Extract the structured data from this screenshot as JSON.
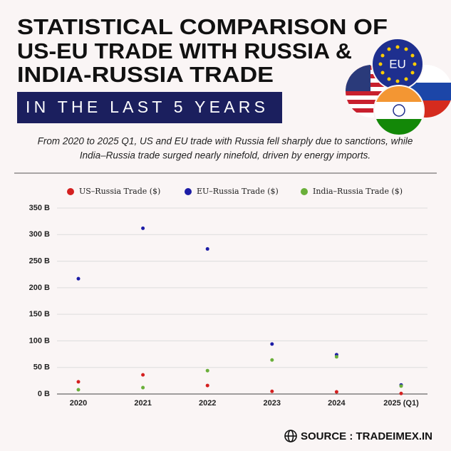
{
  "header": {
    "title": [
      "STATISTICAL COMPARISON OF",
      "US-EU TRADE WITH RUSSIA &",
      "INDIA-RUSSIA TRADE"
    ],
    "banner": "IN THE LAST 5 YEARS",
    "flag_label": "EU",
    "description": [
      "From 2020 to 2025 Q1, US and EU trade with Russia fell sharply due to sanctions, while",
      "India–Russia trade surged nearly ninefold, driven by energy imports."
    ]
  },
  "chart_data": {
    "type": "line",
    "categories": [
      "2020",
      "2021",
      "2022",
      "2023",
      "2024",
      "2025 (Q1)"
    ],
    "series": [
      {
        "name": "US–Russia Trade ($)",
        "color": "#d42020",
        "values": [
          23,
          36,
          16,
          5,
          4,
          1
        ]
      },
      {
        "name": "EU–Russia Trade ($)",
        "color": "#1c1ca6",
        "values": [
          217,
          312,
          273,
          94,
          74,
          17
        ]
      },
      {
        "name": "India–Russia Trade ($)",
        "color": "#6aaf3a",
        "values": [
          8,
          12,
          44,
          64,
          70,
          15
        ]
      }
    ],
    "ylim": [
      0,
      350
    ],
    "yticks": [
      {
        "value": 0,
        "label": "0 B"
      },
      {
        "value": 50,
        "label": "50 B"
      },
      {
        "value": 100,
        "label": "100 B"
      },
      {
        "value": 150,
        "label": "150 B"
      },
      {
        "value": 200,
        "label": "200 B"
      },
      {
        "value": 250,
        "label": "250 B"
      },
      {
        "value": 300,
        "label": "300 B"
      },
      {
        "value": 350,
        "label": "350 B"
      }
    ],
    "grid": true,
    "legend": "top"
  },
  "footer": {
    "source": "SOURCE : TRADEIMEX.IN"
  }
}
